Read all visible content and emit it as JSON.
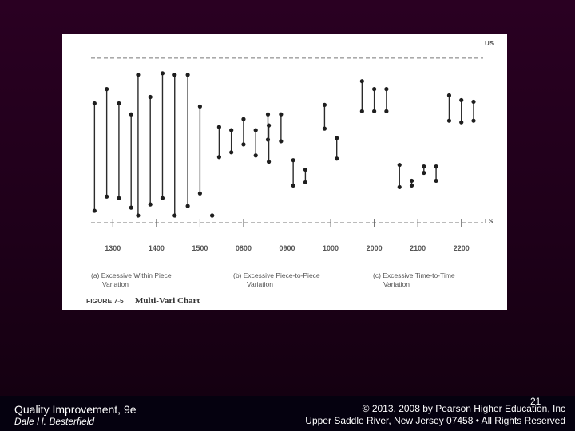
{
  "footer": {
    "course_title": "Quality Improvement, 9e",
    "author": "Dale H. Besterfield",
    "slide_number": "21",
    "copyright": "© 2013, 2008 by Pearson Higher Education, Inc",
    "address": "Upper Saddle River, New Jersey 07458 • All Rights Reserved"
  },
  "figure": {
    "caption_label": "FIGURE 7-5",
    "caption_title": "Multi-Vari Chart",
    "panels": [
      {
        "line1": "(a) Excessive Within Piece",
        "line2": "Variation"
      },
      {
        "line1": "(b) Excessive Piece-to-Piece",
        "line2": "Variation"
      },
      {
        "line1": "(c) Excessive Time-to-Time",
        "line2": "Variation"
      }
    ]
  },
  "chart_data": {
    "type": "multi-vari",
    "title": "Multi-Vari Chart",
    "upper_limit_label": "US",
    "lower_limit_label": "LS",
    "ylim": [
      0,
      100
    ],
    "upper_limit": 95,
    "lower_limit": 0,
    "categories": [
      "1300",
      "1400",
      "1500",
      "0800",
      "0900",
      "1000",
      "2000",
      "2100",
      "2200"
    ],
    "groups": [
      {
        "time": "1300",
        "bars": [
          [
            3,
            71
          ],
          [
            12,
            80
          ],
          [
            11,
            71
          ],
          [
            5,
            64
          ]
        ]
      },
      {
        "time": "1400",
        "bars": [
          [
            0,
            89
          ],
          [
            7,
            75
          ],
          [
            11,
            90
          ],
          [
            0,
            89
          ]
        ]
      },
      {
        "time": "1500",
        "bars": [
          [
            6,
            89
          ],
          [
            14,
            69
          ],
          [
            0,
            0
          ]
        ]
      },
      {
        "time": "0800",
        "bars": [
          [
            37,
            56
          ],
          [
            40,
            54
          ],
          [
            45,
            61
          ],
          [
            38,
            54
          ],
          [
            48,
            64
          ]
        ]
      },
      {
        "time": "0900",
        "bars": [
          [
            34,
            57
          ],
          [
            47,
            64
          ],
          [
            19,
            35
          ],
          [
            21,
            29
          ]
        ]
      },
      {
        "time": "1000",
        "bars": [
          [
            55,
            70
          ],
          [
            36,
            49
          ]
        ]
      },
      {
        "time": "2000",
        "bars": [
          [
            66,
            85
          ],
          [
            66,
            80
          ],
          [
            66,
            80
          ]
        ]
      },
      {
        "time": "2100",
        "bars": [
          [
            18,
            32
          ],
          [
            19,
            22
          ],
          [
            27,
            31
          ],
          [
            22,
            31
          ]
        ]
      },
      {
        "time": "2200",
        "bars": [
          [
            60,
            76
          ],
          [
            59,
            73
          ],
          [
            60,
            72
          ]
        ]
      }
    ]
  }
}
